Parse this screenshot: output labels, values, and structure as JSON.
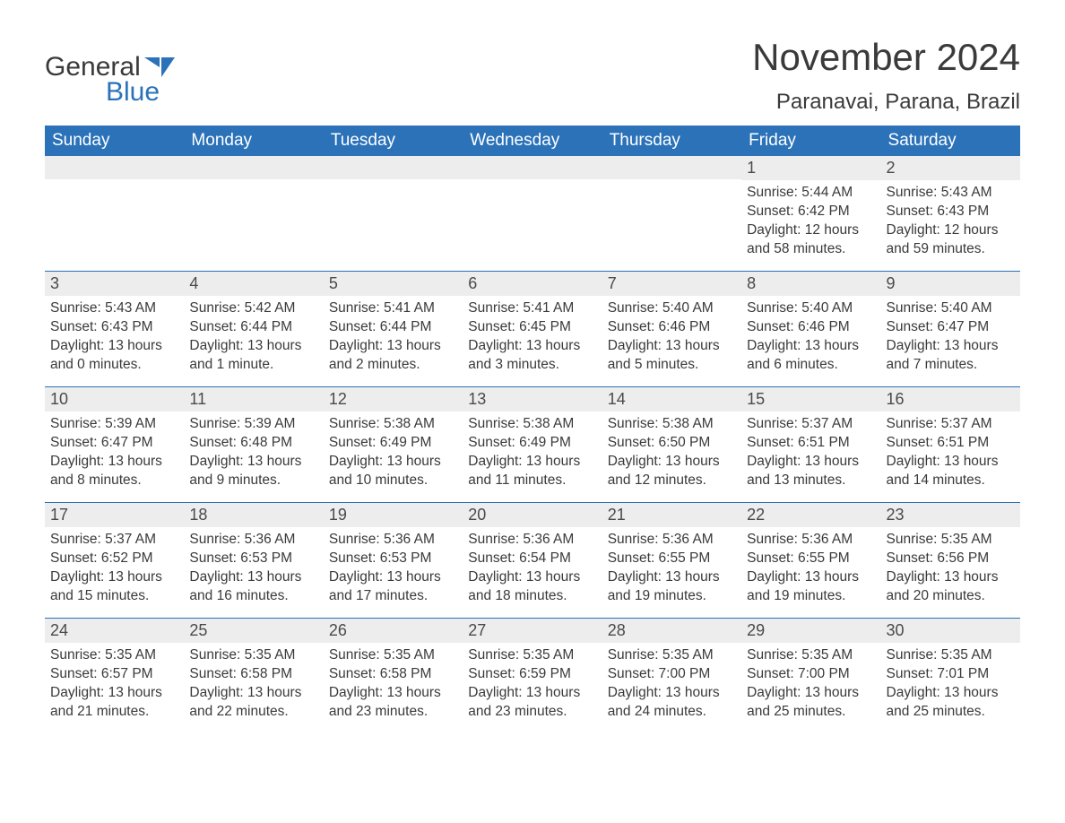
{
  "logo": {
    "text1": "General",
    "text2": "Blue",
    "icon_color": "#2b72b9"
  },
  "title": "November 2024",
  "location": "Paranavai, Parana, Brazil",
  "colors": {
    "header_bg": "#2b72b9",
    "header_text": "#ffffff",
    "daynum_bg": "#ededed",
    "text": "#3a3a3a",
    "rule": "#2b72b9",
    "page_bg": "#ffffff"
  },
  "typography": {
    "title_fontsize": 42,
    "location_fontsize": 24,
    "weekday_fontsize": 19,
    "daynum_fontsize": 18,
    "body_fontsize": 15.5,
    "font_family": "Arial"
  },
  "layout": {
    "columns": 7,
    "rows": 5,
    "start_weekday_index": 5
  },
  "weekdays": [
    "Sunday",
    "Monday",
    "Tuesday",
    "Wednesday",
    "Thursday",
    "Friday",
    "Saturday"
  ],
  "labels": {
    "sunrise": "Sunrise",
    "sunset": "Sunset",
    "daylight": "Daylight"
  },
  "days": [
    {
      "n": 1,
      "sunrise": "5:44 AM",
      "sunset": "6:42 PM",
      "daylight": "12 hours and 58 minutes."
    },
    {
      "n": 2,
      "sunrise": "5:43 AM",
      "sunset": "6:43 PM",
      "daylight": "12 hours and 59 minutes."
    },
    {
      "n": 3,
      "sunrise": "5:43 AM",
      "sunset": "6:43 PM",
      "daylight": "13 hours and 0 minutes."
    },
    {
      "n": 4,
      "sunrise": "5:42 AM",
      "sunset": "6:44 PM",
      "daylight": "13 hours and 1 minute."
    },
    {
      "n": 5,
      "sunrise": "5:41 AM",
      "sunset": "6:44 PM",
      "daylight": "13 hours and 2 minutes."
    },
    {
      "n": 6,
      "sunrise": "5:41 AM",
      "sunset": "6:45 PM",
      "daylight": "13 hours and 3 minutes."
    },
    {
      "n": 7,
      "sunrise": "5:40 AM",
      "sunset": "6:46 PM",
      "daylight": "13 hours and 5 minutes."
    },
    {
      "n": 8,
      "sunrise": "5:40 AM",
      "sunset": "6:46 PM",
      "daylight": "13 hours and 6 minutes."
    },
    {
      "n": 9,
      "sunrise": "5:40 AM",
      "sunset": "6:47 PM",
      "daylight": "13 hours and 7 minutes."
    },
    {
      "n": 10,
      "sunrise": "5:39 AM",
      "sunset": "6:47 PM",
      "daylight": "13 hours and 8 minutes."
    },
    {
      "n": 11,
      "sunrise": "5:39 AM",
      "sunset": "6:48 PM",
      "daylight": "13 hours and 9 minutes."
    },
    {
      "n": 12,
      "sunrise": "5:38 AM",
      "sunset": "6:49 PM",
      "daylight": "13 hours and 10 minutes."
    },
    {
      "n": 13,
      "sunrise": "5:38 AM",
      "sunset": "6:49 PM",
      "daylight": "13 hours and 11 minutes."
    },
    {
      "n": 14,
      "sunrise": "5:38 AM",
      "sunset": "6:50 PM",
      "daylight": "13 hours and 12 minutes."
    },
    {
      "n": 15,
      "sunrise": "5:37 AM",
      "sunset": "6:51 PM",
      "daylight": "13 hours and 13 minutes."
    },
    {
      "n": 16,
      "sunrise": "5:37 AM",
      "sunset": "6:51 PM",
      "daylight": "13 hours and 14 minutes."
    },
    {
      "n": 17,
      "sunrise": "5:37 AM",
      "sunset": "6:52 PM",
      "daylight": "13 hours and 15 minutes."
    },
    {
      "n": 18,
      "sunrise": "5:36 AM",
      "sunset": "6:53 PM",
      "daylight": "13 hours and 16 minutes."
    },
    {
      "n": 19,
      "sunrise": "5:36 AM",
      "sunset": "6:53 PM",
      "daylight": "13 hours and 17 minutes."
    },
    {
      "n": 20,
      "sunrise": "5:36 AM",
      "sunset": "6:54 PM",
      "daylight": "13 hours and 18 minutes."
    },
    {
      "n": 21,
      "sunrise": "5:36 AM",
      "sunset": "6:55 PM",
      "daylight": "13 hours and 19 minutes."
    },
    {
      "n": 22,
      "sunrise": "5:36 AM",
      "sunset": "6:55 PM",
      "daylight": "13 hours and 19 minutes."
    },
    {
      "n": 23,
      "sunrise": "5:35 AM",
      "sunset": "6:56 PM",
      "daylight": "13 hours and 20 minutes."
    },
    {
      "n": 24,
      "sunrise": "5:35 AM",
      "sunset": "6:57 PM",
      "daylight": "13 hours and 21 minutes."
    },
    {
      "n": 25,
      "sunrise": "5:35 AM",
      "sunset": "6:58 PM",
      "daylight": "13 hours and 22 minutes."
    },
    {
      "n": 26,
      "sunrise": "5:35 AM",
      "sunset": "6:58 PM",
      "daylight": "13 hours and 23 minutes."
    },
    {
      "n": 27,
      "sunrise": "5:35 AM",
      "sunset": "6:59 PM",
      "daylight": "13 hours and 23 minutes."
    },
    {
      "n": 28,
      "sunrise": "5:35 AM",
      "sunset": "7:00 PM",
      "daylight": "13 hours and 24 minutes."
    },
    {
      "n": 29,
      "sunrise": "5:35 AM",
      "sunset": "7:00 PM",
      "daylight": "13 hours and 25 minutes."
    },
    {
      "n": 30,
      "sunrise": "5:35 AM",
      "sunset": "7:01 PM",
      "daylight": "13 hours and 25 minutes."
    }
  ]
}
